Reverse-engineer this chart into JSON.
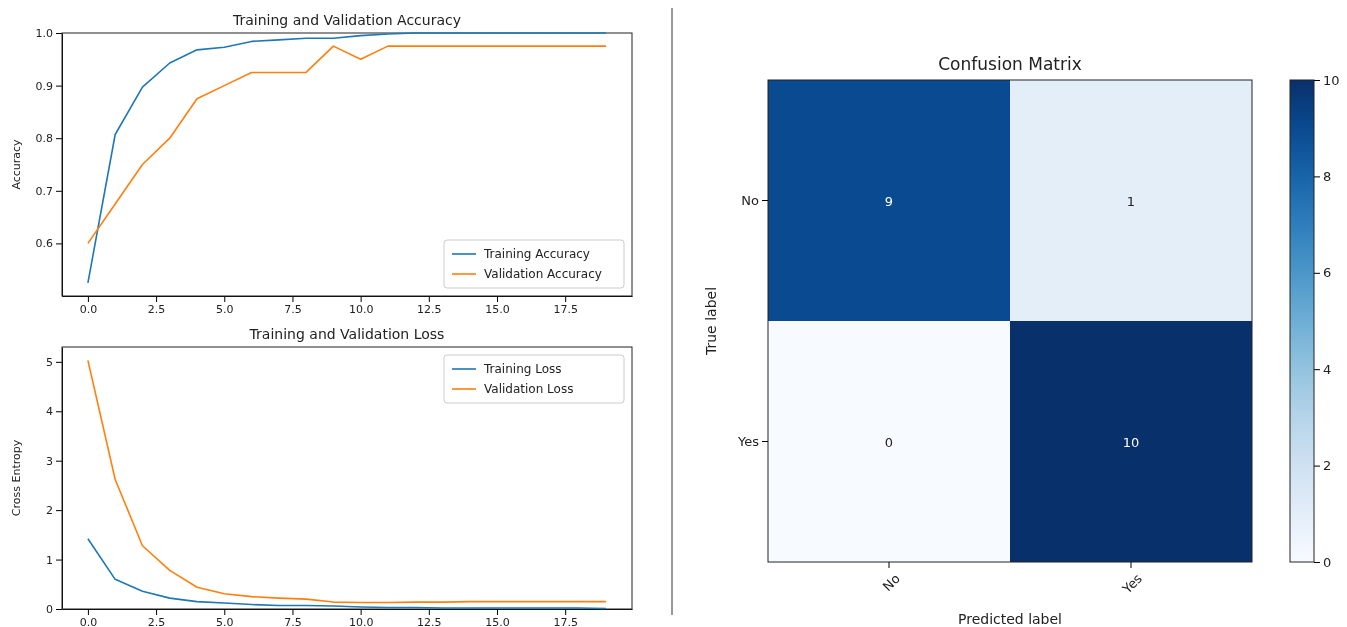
{
  "chart_data": [
    {
      "type": "line",
      "title": "Training and Validation Accuracy",
      "ylabel": "Accuracy",
      "x": [
        0,
        1,
        2,
        3,
        4,
        5,
        6,
        7,
        8,
        9,
        10,
        11,
        12,
        13,
        14,
        15,
        16,
        17,
        18,
        19
      ],
      "xlim": [
        -0.95,
        19.95
      ],
      "ylim": [
        0.5,
        1.0
      ],
      "xticks": [
        {
          "value": 0,
          "label": "0.0"
        },
        {
          "value": 2.5,
          "label": "2.5"
        },
        {
          "value": 5,
          "label": "5.0"
        },
        {
          "value": 7.5,
          "label": "7.5"
        },
        {
          "value": 10,
          "label": "10.0"
        },
        {
          "value": 12.5,
          "label": "12.5"
        },
        {
          "value": 15,
          "label": "15.0"
        },
        {
          "value": 17.5,
          "label": "17.5"
        }
      ],
      "yticks": [
        0.6,
        0.7,
        0.8,
        0.9,
        {
          "value": 1,
          "label": "1.0"
        }
      ],
      "grid": false,
      "legend": "bottom right",
      "series": [
        {
          "name": "Training Accuracy",
          "color": "#1f77b4",
          "values": [
            0.525,
            0.807,
            0.897,
            0.943,
            0.968,
            0.973,
            0.984,
            0.987,
            0.99,
            0.99,
            0.995,
            0.998,
            1,
            1,
            1,
            1,
            1,
            1,
            1,
            1
          ]
        },
        {
          "name": "Validation Accuracy",
          "color": "#ff7f0e",
          "values": [
            0.6,
            0.675,
            0.75,
            0.8,
            0.875,
            0.9,
            0.925,
            0.925,
            0.925,
            0.975,
            0.95,
            0.975,
            0.975,
            0.975,
            0.975,
            0.975,
            0.975,
            0.975,
            0.975,
            0.975
          ]
        }
      ]
    },
    {
      "type": "line",
      "title": "Training and Validation Loss",
      "ylabel": "Cross Entropy",
      "x": [
        0,
        1,
        2,
        3,
        4,
        5,
        6,
        7,
        8,
        9,
        10,
        11,
        12,
        13,
        14,
        15,
        16,
        17,
        18,
        19
      ],
      "xlim": [
        -0.95,
        19.95
      ],
      "ylim": [
        0,
        5.3
      ],
      "xticks": [
        {
          "value": 0,
          "label": "0.0"
        },
        {
          "value": 2.5,
          "label": "2.5"
        },
        {
          "value": 5,
          "label": "5.0"
        },
        {
          "value": 7.5,
          "label": "7.5"
        },
        {
          "value": 10,
          "label": "10.0"
        },
        {
          "value": 12.5,
          "label": "12.5"
        },
        {
          "value": 15,
          "label": "15.0"
        },
        {
          "value": 17.5,
          "label": "17.5"
        }
      ],
      "yticks": [
        0,
        1,
        2,
        3,
        4,
        5
      ],
      "grid": false,
      "legend": "top right",
      "series": [
        {
          "name": "Training Loss",
          "color": "#1f77b4",
          "values": [
            1.42,
            0.6,
            0.36,
            0.22,
            0.15,
            0.12,
            0.09,
            0.07,
            0.07,
            0.06,
            0.04,
            0.03,
            0.03,
            0.02,
            0.02,
            0.02,
            0.02,
            0.02,
            0.02,
            0.01
          ]
        },
        {
          "name": "Validation Loss",
          "color": "#ff7f0e",
          "values": [
            5.03,
            2.62,
            1.28,
            0.78,
            0.44,
            0.31,
            0.25,
            0.22,
            0.2,
            0.14,
            0.13,
            0.13,
            0.14,
            0.14,
            0.15,
            0.15,
            0.15,
            0.15,
            0.15,
            0.15
          ]
        }
      ]
    },
    {
      "type": "heatmap",
      "title": "Confusion Matrix",
      "xlabel": "Predicted label",
      "ylabel": "True label",
      "categories": [
        "No",
        "Yes"
      ],
      "y_categories": [
        "No",
        "Yes"
      ],
      "cells": [
        [
          9,
          1
        ],
        [
          0,
          10
        ]
      ],
      "clim": [
        0,
        10
      ],
      "cticks": [
        0,
        2,
        4,
        6,
        8,
        10
      ],
      "data_labels": true
    }
  ]
}
